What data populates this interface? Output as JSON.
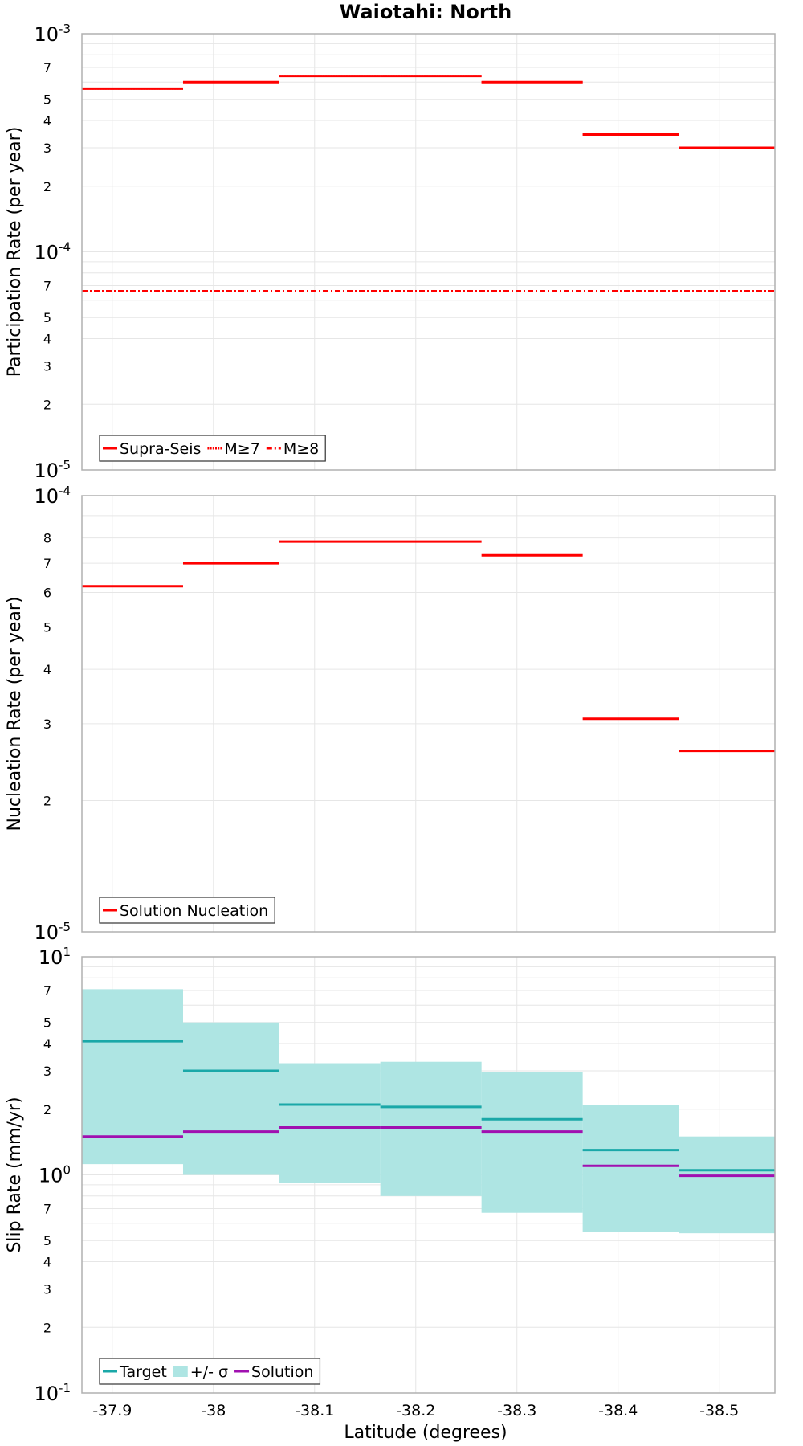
{
  "title": "Waiotahi: North",
  "x_axis": {
    "label": "Latitude (degrees)",
    "range": [
      -37.87,
      -38.555
    ],
    "ticks": [
      -37.9,
      -38.0,
      -38.1,
      -38.2,
      -38.3,
      -38.4,
      -38.5
    ],
    "tick_labels": [
      "-37.9",
      "-38",
      "-38.1",
      "-38.2",
      "-38.3",
      "-38.4",
      "-38.5"
    ]
  },
  "colors": {
    "red": "#ff0000",
    "teal": "#1aa8a8",
    "band": "#aee5e3",
    "purple": "#a010b0",
    "grid": "#e6e6e6",
    "frame": "#b0b0b0"
  },
  "chart_data": [
    {
      "type": "line",
      "ylabel": "Participation Rate (per year)",
      "scale": "log",
      "ylim": [
        1e-05,
        0.001
      ],
      "grid": true,
      "major_ticks": [
        {
          "base": "10",
          "exp": "-5",
          "value": 1e-05
        },
        {
          "base": "10",
          "exp": "-4",
          "value": 0.0001
        },
        {
          "base": "10",
          "exp": "-3",
          "value": 0.001
        }
      ],
      "minor_tick_labels": [
        "2",
        "3",
        "4",
        "5",
        "7"
      ],
      "legend": {
        "position": "bottom-left",
        "entries": [
          {
            "label": "Supra-Seis",
            "color": "#ff0000",
            "dash": "solid"
          },
          {
            "label": "M≥7",
            "color": "#ff0000",
            "dash": "dotted"
          },
          {
            "label": "M≥8",
            "color": "#ff0000",
            "dash": "dashdot"
          }
        ]
      },
      "series": [
        {
          "name": "Supra-Seis",
          "style": "solid",
          "color": "#ff0000",
          "steps": [
            [
              -37.87,
              -37.97,
              0.00056
            ],
            [
              -37.97,
              -38.065,
              0.0006
            ],
            [
              -38.065,
              -38.165,
              0.00064
            ],
            [
              -38.165,
              -38.265,
              0.00064
            ],
            [
              -38.265,
              -38.365,
              0.0006
            ],
            [
              -38.365,
              -38.46,
              0.000345
            ],
            [
              -38.46,
              -38.555,
              0.0003
            ]
          ]
        },
        {
          "name": "M≥7",
          "style": "dotted",
          "color": "#ff0000",
          "steps": [
            [
              -37.87,
              -37.97,
              0.00056
            ],
            [
              -37.97,
              -38.065,
              0.0006
            ],
            [
              -38.065,
              -38.165,
              0.00064
            ],
            [
              -38.165,
              -38.265,
              0.00064
            ],
            [
              -38.265,
              -38.365,
              0.0006
            ],
            [
              -38.365,
              -38.46,
              0.000345
            ],
            [
              -38.46,
              -38.555,
              0.0003
            ]
          ]
        },
        {
          "name": "M≥8",
          "style": "dashdot",
          "color": "#ff0000",
          "steps": [
            [
              -37.87,
              -38.555,
              6.6e-05
            ]
          ]
        }
      ]
    },
    {
      "type": "line",
      "ylabel": "Nucleation Rate (per year)",
      "scale": "log",
      "ylim": [
        1e-05,
        0.0001
      ],
      "grid": true,
      "major_ticks": [
        {
          "base": "10",
          "exp": "-5",
          "value": 1e-05
        },
        {
          "base": "10",
          "exp": "-4",
          "value": 0.0001
        }
      ],
      "minor_tick_labels": [
        "2",
        "3",
        "4",
        "5",
        "6",
        "7",
        "8"
      ],
      "legend": {
        "position": "bottom-left",
        "entries": [
          {
            "label": "Solution Nucleation",
            "color": "#ff0000",
            "dash": "solid"
          }
        ]
      },
      "series": [
        {
          "name": "Solution Nucleation",
          "style": "solid",
          "color": "#ff0000",
          "steps": [
            [
              -37.87,
              -37.97,
              6.2e-05
            ],
            [
              -37.97,
              -38.065,
              7e-05
            ],
            [
              -38.065,
              -38.265,
              7.85e-05
            ],
            [
              -38.265,
              -38.365,
              7.3e-05
            ],
            [
              -38.365,
              -38.46,
              3.08e-05
            ],
            [
              -38.46,
              -38.555,
              2.6e-05
            ]
          ]
        }
      ]
    },
    {
      "type": "line",
      "ylabel": "Slip Rate (mm/yr)",
      "scale": "log",
      "ylim": [
        0.1,
        10
      ],
      "grid": true,
      "major_ticks": [
        {
          "base": "10",
          "exp": "-1",
          "value": 0.1
        },
        {
          "base": "10",
          "exp": "0",
          "value": 1
        },
        {
          "base": "10",
          "exp": "1",
          "value": 10
        }
      ],
      "minor_tick_labels": [
        "2",
        "3",
        "4",
        "5",
        "7"
      ],
      "legend": {
        "position": "bottom-left",
        "entries": [
          {
            "label": "Target",
            "color": "#1aa8a8",
            "dash": "solid",
            "kind": "line"
          },
          {
            "label": "+/- σ",
            "color": "#aee5e3",
            "kind": "band"
          },
          {
            "label": "Solution",
            "color": "#a010b0",
            "dash": "solid",
            "kind": "line"
          }
        ]
      },
      "band": {
        "name": "+/- σ",
        "color": "#aee5e3",
        "steps": [
          [
            -37.87,
            -37.97,
            1.12,
            7.1
          ],
          [
            -37.97,
            -38.065,
            1.0,
            5.0
          ],
          [
            -38.065,
            -38.165,
            0.92,
            3.25
          ],
          [
            -38.165,
            -38.265,
            0.8,
            3.3
          ],
          [
            -38.265,
            -38.365,
            0.67,
            2.95
          ],
          [
            -38.365,
            -38.46,
            0.55,
            2.1
          ],
          [
            -38.46,
            -38.555,
            0.54,
            1.5
          ]
        ]
      },
      "series": [
        {
          "name": "Target",
          "style": "solid",
          "color": "#1aa8a8",
          "steps": [
            [
              -37.87,
              -37.97,
              4.1
            ],
            [
              -37.97,
              -38.065,
              3.0
            ],
            [
              -38.065,
              -38.165,
              2.1
            ],
            [
              -38.165,
              -38.265,
              2.05
            ],
            [
              -38.265,
              -38.365,
              1.8
            ],
            [
              -38.365,
              -38.46,
              1.3
            ],
            [
              -38.46,
              -38.555,
              1.05
            ]
          ]
        },
        {
          "name": "Solution",
          "style": "solid",
          "color": "#a010b0",
          "steps": [
            [
              -37.87,
              -37.97,
              1.5
            ],
            [
              -37.97,
              -38.065,
              1.58
            ],
            [
              -38.065,
              -38.165,
              1.65
            ],
            [
              -38.165,
              -38.265,
              1.65
            ],
            [
              -38.265,
              -38.365,
              1.58
            ],
            [
              -38.365,
              -38.46,
              1.1
            ],
            [
              -38.46,
              -38.555,
              0.99
            ]
          ]
        }
      ]
    }
  ]
}
